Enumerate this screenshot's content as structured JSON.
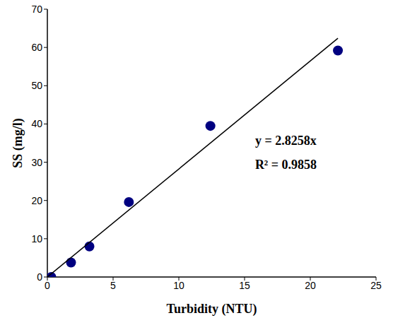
{
  "chart_data": {
    "type": "scatter",
    "x_label": "Turbidity (NTU)",
    "y_label": "SS (mg/l)",
    "annotations": [
      "y = 2.8258x",
      "R² = 0.9858"
    ],
    "xlim": [
      0,
      25
    ],
    "xticks": [
      0,
      5,
      10,
      15,
      20,
      25
    ],
    "ylim": [
      0,
      70
    ],
    "yticks": [
      0,
      10,
      20,
      30,
      40,
      50,
      60,
      70
    ],
    "grid": false,
    "series": [
      {
        "type": "scatter",
        "marker": "circle",
        "color": "#000080",
        "x": [
          0.3,
          1.8,
          3.2,
          6.2,
          12.4,
          22.1
        ],
        "values": [
          0,
          3.8,
          8,
          19.6,
          39.5,
          59.2
        ]
      },
      {
        "type": "line",
        "line_style": "solid",
        "color": "#000000",
        "x": [
          0,
          22.1
        ],
        "values": [
          0,
          62.4
        ]
      }
    ]
  }
}
